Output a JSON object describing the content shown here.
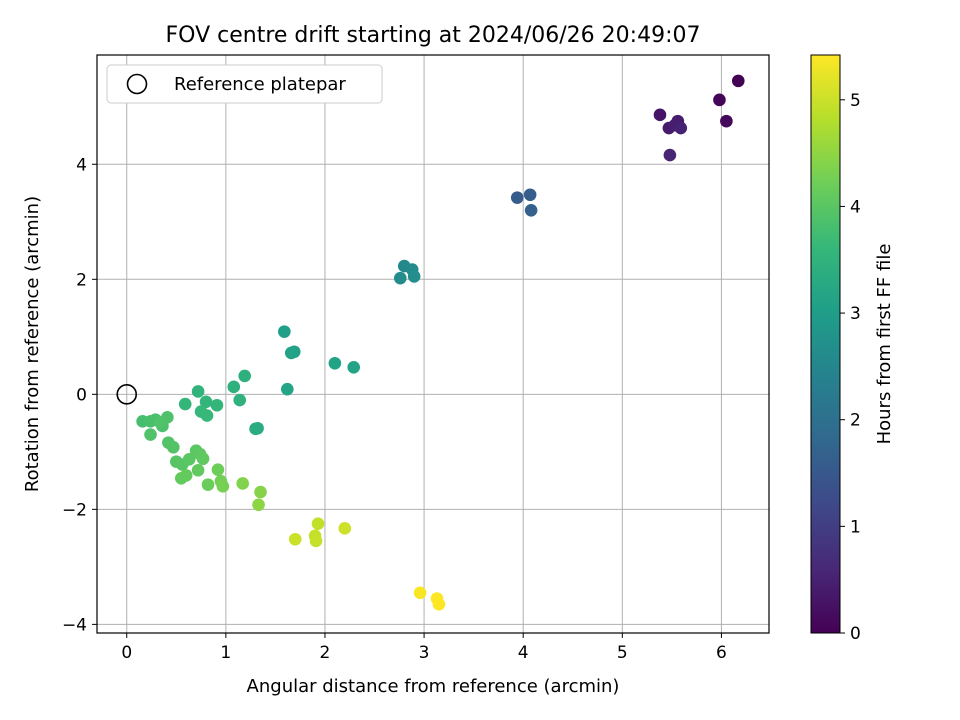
{
  "chart_data": {
    "type": "scatter",
    "title": "FOV centre drift starting at 2024/06/26 20:49:07",
    "xlabel": "Angular distance from reference (arcmin)",
    "ylabel": "Rotation from reference (arcmin)",
    "xlim": [
      -0.3,
      6.48
    ],
    "ylim": [
      -4.15,
      5.9
    ],
    "xticks": [
      0,
      1,
      2,
      3,
      4,
      5,
      6
    ],
    "yticks": [
      -4,
      -2,
      0,
      2,
      4
    ],
    "grid": true,
    "legend": {
      "placement": "top-left",
      "entries": [
        "Reference platepar"
      ]
    },
    "reference_point": {
      "x": 0,
      "y": 0
    },
    "colorbar": {
      "label": "Hours from first FF file",
      "range": [
        0,
        5.42
      ],
      "ticks": [
        0,
        1,
        2,
        3,
        4,
        5
      ],
      "colormap": [
        "#440154",
        "#482878",
        "#3e4989",
        "#31688e",
        "#26828e",
        "#1f9e89",
        "#35b779",
        "#6ece58",
        "#b5de2b",
        "#fde725"
      ]
    },
    "points": [
      {
        "x": 6.17,
        "y": 5.45,
        "c": 0.02
      },
      {
        "x": 5.98,
        "y": 5.12,
        "c": 0.08
      },
      {
        "x": 6.05,
        "y": 4.75,
        "c": 0.12
      },
      {
        "x": 5.38,
        "y": 4.86,
        "c": 0.3
      },
      {
        "x": 5.47,
        "y": 4.63,
        "c": 0.38
      },
      {
        "x": 5.56,
        "y": 4.75,
        "c": 0.42
      },
      {
        "x": 5.53,
        "y": 4.68,
        "c": 0.45
      },
      {
        "x": 5.59,
        "y": 4.63,
        "c": 0.5
      },
      {
        "x": 5.48,
        "y": 4.16,
        "c": 0.55
      },
      {
        "x": 3.94,
        "y": 3.42,
        "c": 1.58
      },
      {
        "x": 4.07,
        "y": 3.47,
        "c": 1.62
      },
      {
        "x": 4.08,
        "y": 3.2,
        "c": 1.66
      },
      {
        "x": 2.8,
        "y": 2.23,
        "c": 2.55
      },
      {
        "x": 2.88,
        "y": 2.17,
        "c": 2.58
      },
      {
        "x": 2.76,
        "y": 2.02,
        "c": 2.62
      },
      {
        "x": 2.9,
        "y": 2.05,
        "c": 2.66
      },
      {
        "x": 1.59,
        "y": 1.09,
        "c": 3.05
      },
      {
        "x": 1.69,
        "y": 0.74,
        "c": 3.08
      },
      {
        "x": 1.66,
        "y": 0.72,
        "c": 3.1
      },
      {
        "x": 2.1,
        "y": 0.54,
        "c": 3.12
      },
      {
        "x": 2.29,
        "y": 0.47,
        "c": 3.14
      },
      {
        "x": 1.62,
        "y": 0.09,
        "c": 3.18
      },
      {
        "x": 1.32,
        "y": -0.59,
        "c": 3.3
      },
      {
        "x": 1.3,
        "y": -0.6,
        "c": 3.32
      },
      {
        "x": 1.19,
        "y": 0.32,
        "c": 3.42
      },
      {
        "x": 1.08,
        "y": 0.13,
        "c": 3.45
      },
      {
        "x": 1.14,
        "y": -0.1,
        "c": 3.48
      },
      {
        "x": 0.72,
        "y": 0.05,
        "c": 3.52
      },
      {
        "x": 0.8,
        "y": -0.13,
        "c": 3.55
      },
      {
        "x": 0.91,
        "y": -0.19,
        "c": 3.57
      },
      {
        "x": 0.59,
        "y": -0.17,
        "c": 3.6
      },
      {
        "x": 0.75,
        "y": -0.3,
        "c": 3.62
      },
      {
        "x": 0.81,
        "y": -0.37,
        "c": 3.64
      },
      {
        "x": 0.16,
        "y": -0.47,
        "c": 3.8
      },
      {
        "x": 0.24,
        "y": -0.47,
        "c": 3.82
      },
      {
        "x": 0.29,
        "y": -0.44,
        "c": 3.84
      },
      {
        "x": 0.36,
        "y": -0.55,
        "c": 3.86
      },
      {
        "x": 0.41,
        "y": -0.4,
        "c": 3.88
      },
      {
        "x": 0.34,
        "y": -0.49,
        "c": 3.89
      },
      {
        "x": 0.24,
        "y": -0.7,
        "c": 3.9
      },
      {
        "x": 0.42,
        "y": -0.84,
        "c": 3.92
      },
      {
        "x": 0.47,
        "y": -0.92,
        "c": 3.94
      },
      {
        "x": 0.5,
        "y": -1.17,
        "c": 3.96
      },
      {
        "x": 0.56,
        "y": -1.22,
        "c": 3.98
      },
      {
        "x": 0.63,
        "y": -1.13,
        "c": 4.0
      },
      {
        "x": 0.7,
        "y": -0.98,
        "c": 4.02
      },
      {
        "x": 0.74,
        "y": -1.04,
        "c": 4.04
      },
      {
        "x": 0.77,
        "y": -1.12,
        "c": 4.06
      },
      {
        "x": 0.72,
        "y": -1.32,
        "c": 4.08
      },
      {
        "x": 0.55,
        "y": -1.46,
        "c": 4.1
      },
      {
        "x": 0.6,
        "y": -1.41,
        "c": 4.12
      },
      {
        "x": 0.82,
        "y": -1.57,
        "c": 4.16
      },
      {
        "x": 0.92,
        "y": -1.31,
        "c": 4.2
      },
      {
        "x": 0.95,
        "y": -1.51,
        "c": 4.24
      },
      {
        "x": 0.97,
        "y": -1.6,
        "c": 4.28
      },
      {
        "x": 1.17,
        "y": -1.55,
        "c": 4.38
      },
      {
        "x": 1.35,
        "y": -1.7,
        "c": 4.42
      },
      {
        "x": 1.33,
        "y": -1.92,
        "c": 4.48
      },
      {
        "x": 1.93,
        "y": -2.25,
        "c": 4.92
      },
      {
        "x": 1.9,
        "y": -2.46,
        "c": 4.95
      },
      {
        "x": 1.91,
        "y": -2.55,
        "c": 4.97
      },
      {
        "x": 1.7,
        "y": -2.52,
        "c": 5.0
      },
      {
        "x": 2.2,
        "y": -2.33,
        "c": 5.02
      },
      {
        "x": 2.96,
        "y": -3.45,
        "c": 5.38
      },
      {
        "x": 3.13,
        "y": -3.55,
        "c": 5.4
      },
      {
        "x": 3.15,
        "y": -3.65,
        "c": 5.42
      }
    ]
  }
}
